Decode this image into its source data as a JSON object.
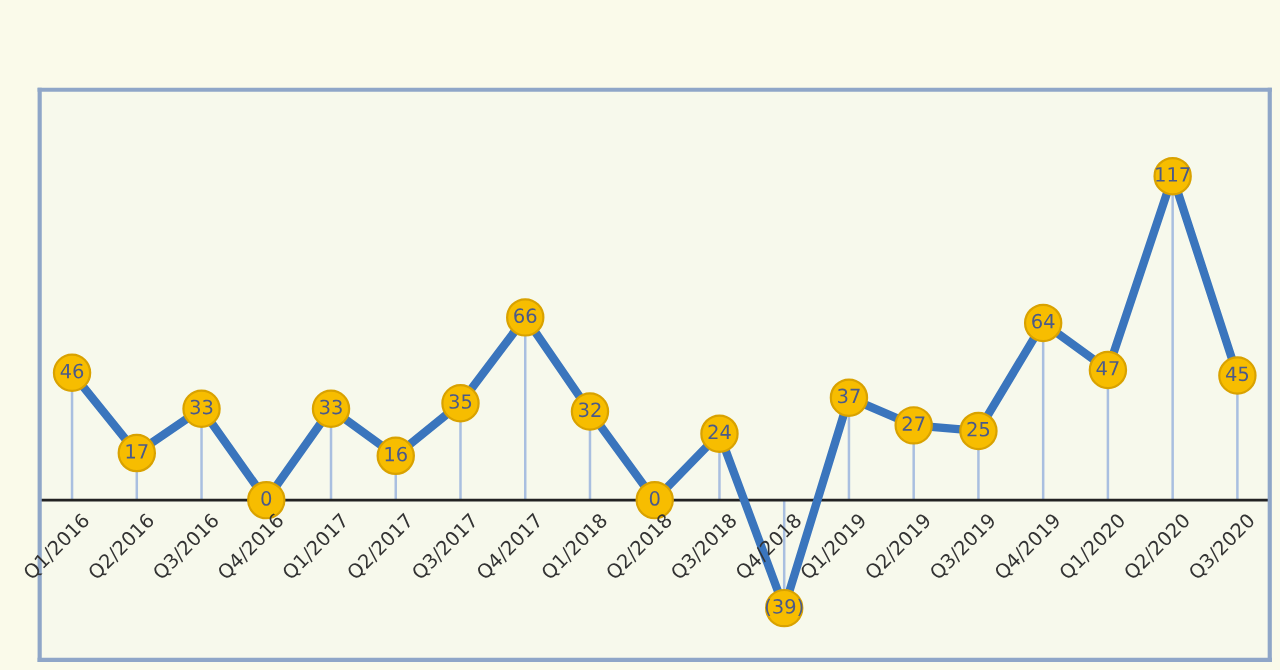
{
  "chart_data": {
    "type": "line",
    "categories": [
      "Q1/2016",
      "Q2/2016",
      "Q3/2016",
      "Q4/2016",
      "Q1/2017",
      "Q2/2017",
      "Q3/2017",
      "Q4/2017",
      "Q1/2018",
      "Q2/2018",
      "Q3/2018",
      "Q4/2018",
      "Q1/2019",
      "Q2/2019",
      "Q3/2019",
      "Q4/2019",
      "Q1/2020",
      "Q2/2020",
      "Q3/2020"
    ],
    "series": [
      {
        "color": "#3a75bd",
        "values": [
          46,
          17,
          33,
          0,
          33,
          16,
          35,
          66,
          32,
          0,
          24,
          -39,
          37,
          27,
          25,
          64,
          47,
          117,
          45
        ],
        "value_labels": [
          "46",
          "17",
          "33",
          "0",
          "33",
          "16",
          "35",
          "66",
          "32",
          "0",
          "24",
          "(39)",
          "37",
          "27",
          "25",
          "64",
          "47",
          "117",
          "45"
        ]
      }
    ],
    "marker": "circle"
  }
}
